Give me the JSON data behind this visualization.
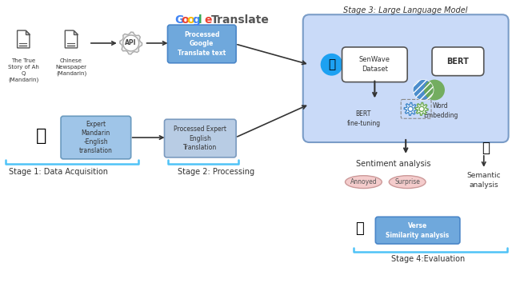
{
  "background_color": "#ffffff",
  "stage3_label": "Stage 3: Large Language Model",
  "stage1_label": "Stage 1: Data Acquisition",
  "stage2_label": "Stage 2: Processing",
  "stage4_label": "Stage 4:Evaluation",
  "google_letters": [
    "G",
    "o",
    "o",
    "g",
    "l",
    "e"
  ],
  "google_colors": [
    "#4285F4",
    "#EA4335",
    "#FBBC05",
    "#4285F4",
    "#34A853",
    "#EA4335"
  ],
  "translate_color": "#555555",
  "box_blue": "#6fa8dc",
  "box_light_blue": "#b8cce4",
  "stage3_bg": "#c9daf8",
  "senwave_fill": "#ffffff",
  "bert_fill": "#ffffff",
  "processed_google_fill": "#6fa8dc",
  "processed_expert_fill": "#b8cce4",
  "expert_fill": "#9fc5e8",
  "twitter_blue": "#1da1f2",
  "word_embed_blue": "#3d85c8",
  "word_embed_green": "#6aa84f",
  "gear_color": "#3d85c8",
  "gear2_color": "#6aa84f",
  "sentiment_fill": "#f4cccc",
  "verse_fill": "#6fa8dc",
  "bracket_color": "#4fc3f7",
  "arrow_color": "#333333",
  "text_dark": "#333333",
  "text_white": "#ffffff"
}
